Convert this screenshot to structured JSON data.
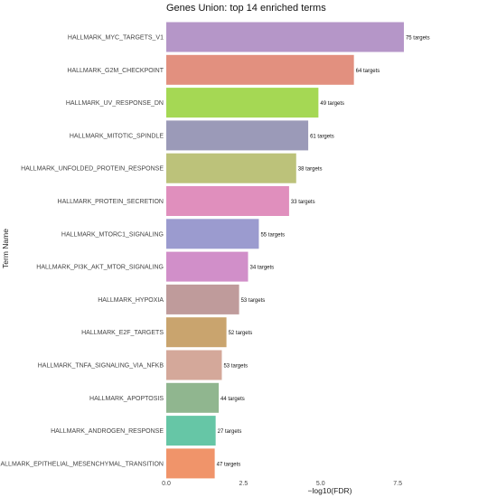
{
  "chart_data": {
    "type": "bar",
    "orientation": "horizontal",
    "title": "Genes Union: top 14 enriched terms",
    "xlabel": "−log10(FDR)",
    "ylabel": "Term Name",
    "xlim": [
      0,
      10.6
    ],
    "xticks": [
      {
        "value": 0,
        "label": "0.0"
      },
      {
        "value": 2.5,
        "label": "2.5"
      },
      {
        "value": 5,
        "label": "5.0"
      },
      {
        "value": 7.5,
        "label": "7.5"
      }
    ],
    "grid": false,
    "categories": [
      "HALLMARK_MYC_TARGETS_V1",
      "HALLMARK_G2M_CHECKPOINT",
      "HALLMARK_UV_RESPONSE_DN",
      "HALLMARK_MITOTIC_SPINDLE",
      "HALLMARK_UNFOLDED_PROTEIN_RESPONSE",
      "HALLMARK_PROTEIN_SECRETION",
      "HALLMARK_MTORC1_SIGNALING",
      "HALLMARK_PI3K_AKT_MTOR_SIGNALING",
      "HALLMARK_HYPOXIA",
      "HALLMARK_E2F_TARGETS",
      "HALLMARK_TNFA_SIGNALING_VIA_NFKB",
      "HALLMARK_APOPTOSIS",
      "HALLMARK_ANDROGEN_RESPONSE",
      "HALLMARK_EPITHELIAL_MESENCHYMAL_TRANSITION"
    ],
    "values": [
      7.7,
      6.08,
      4.93,
      4.6,
      4.21,
      3.98,
      3.0,
      2.65,
      2.36,
      1.95,
      1.8,
      1.7,
      1.6,
      1.57
    ],
    "data_labels": [
      "75 targets",
      "64 targets",
      "49 targets",
      "61 targets",
      "38 targets",
      "33 targets",
      "55 targets",
      "34 targets",
      "53 targets",
      "52 targets",
      "53 targets",
      "44 targets",
      "27 targets",
      "47 targets"
    ],
    "colors": [
      "#b596c8",
      "#e2907f",
      "#a5d854",
      "#9b9ab8",
      "#bcc27a",
      "#e08fbd",
      "#9b9bcf",
      "#d18fc9",
      "#bf9b9b",
      "#c9a46e",
      "#d4a89a",
      "#90b68f",
      "#66c6a6",
      "#f0946a"
    ]
  }
}
